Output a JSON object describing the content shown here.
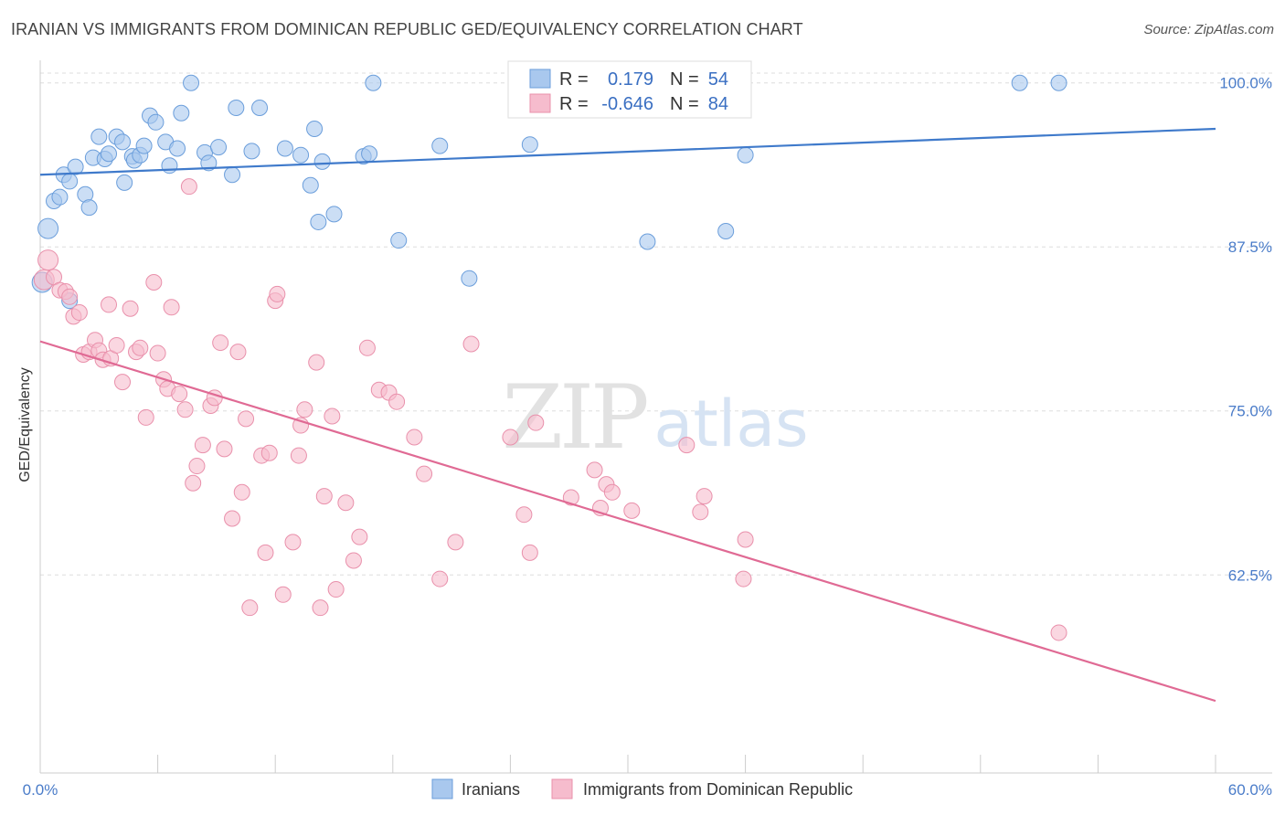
{
  "title": "IRANIAN VS IMMIGRANTS FROM DOMINICAN REPUBLIC GED/EQUIVALENCY CORRELATION CHART",
  "source": "Source: ZipAtlas.com",
  "watermark": {
    "zip": "ZIP",
    "atlas": "atlas"
  },
  "colors": {
    "blue_fill": "#a9c8ee",
    "blue_stroke": "#6b9edb",
    "blue_line": "#3f7acb",
    "pink_fill": "#f6bccd",
    "pink_stroke": "#e990ab",
    "pink_line": "#e06a94",
    "axis_text": "#4a7cc9",
    "grid": "#dddddd"
  },
  "legend": {
    "r_label": "R =",
    "n_label": "N =",
    "rows": [
      {
        "series": "Iranians",
        "r": "0.179",
        "n": "54"
      },
      {
        "series": "Immigrants from Dominican Republic",
        "r": "-0.646",
        "n": "84"
      }
    ]
  },
  "chart_data": {
    "type": "scatter",
    "title": "IRANIAN VS IMMIGRANTS FROM DOMINICAN REPUBLIC GED/EQUIVALENCY CORRELATION CHART",
    "xlabel": "",
    "ylabel": "GED/Equivalency",
    "xlim": [
      0,
      60
    ],
    "ylim": [
      48.8,
      102
    ],
    "x_tick_labels": [
      "0.0%",
      "60.0%"
    ],
    "y_ticks": [
      62.5,
      75.0,
      87.5,
      100.0
    ],
    "y_tick_labels": [
      "62.5%",
      "75.0%",
      "87.5%",
      "100.0%"
    ],
    "grid": "horizontal dashed",
    "legend_position": "top-center",
    "series": [
      {
        "name": "Iranians",
        "color": "#a9c8ee",
        "trend": {
          "x": [
            0,
            60
          ],
          "y": [
            93.0,
            96.5
          ]
        },
        "points": [
          [
            0.1,
            84.8
          ],
          [
            0.4,
            88.9
          ],
          [
            0.7,
            91.0
          ],
          [
            1.0,
            91.3
          ],
          [
            1.2,
            93.0
          ],
          [
            1.5,
            92.5
          ],
          [
            1.8,
            93.6
          ],
          [
            2.3,
            91.5
          ],
          [
            2.5,
            90.5
          ],
          [
            2.7,
            94.3
          ],
          [
            3.0,
            95.9
          ],
          [
            3.3,
            94.2
          ],
          [
            3.5,
            94.6
          ],
          [
            3.9,
            95.9
          ],
          [
            4.2,
            95.5
          ],
          [
            4.3,
            92.4
          ],
          [
            4.7,
            94.4
          ],
          [
            4.8,
            94.1
          ],
          [
            5.1,
            94.5
          ],
          [
            5.3,
            95.2
          ],
          [
            5.6,
            97.5
          ],
          [
            5.9,
            97.0
          ],
          [
            6.4,
            95.5
          ],
          [
            6.6,
            93.7
          ],
          [
            7.0,
            95.0
          ],
          [
            7.2,
            97.7
          ],
          [
            7.7,
            100.0
          ],
          [
            8.4,
            94.7
          ],
          [
            8.6,
            93.9
          ],
          [
            9.1,
            95.1
          ],
          [
            9.8,
            93.0
          ],
          [
            10.0,
            98.1
          ],
          [
            10.8,
            94.8
          ],
          [
            11.2,
            98.1
          ],
          [
            12.5,
            95.0
          ],
          [
            13.3,
            94.5
          ],
          [
            13.8,
            92.2
          ],
          [
            14.0,
            96.5
          ],
          [
            14.2,
            89.4
          ],
          [
            14.4,
            94.0
          ],
          [
            15.0,
            90.0
          ],
          [
            16.5,
            94.4
          ],
          [
            16.8,
            94.6
          ],
          [
            17.0,
            100.0
          ],
          [
            18.3,
            88.0
          ],
          [
            20.4,
            95.2
          ],
          [
            21.9,
            85.1
          ],
          [
            25.0,
            95.3
          ],
          [
            31.0,
            87.9
          ],
          [
            35.0,
            88.7
          ],
          [
            36.0,
            94.5
          ],
          [
            50.0,
            100.0
          ],
          [
            52.0,
            100.0
          ],
          [
            1.5,
            83.4
          ]
        ]
      },
      {
        "name": "Immigrants from Dominican Republic",
        "color": "#f6bccd",
        "trend": {
          "x": [
            0,
            60
          ],
          "y": [
            80.3,
            52.9
          ]
        },
        "points": [
          [
            0.2,
            85.0
          ],
          [
            0.4,
            86.5
          ],
          [
            0.7,
            85.2
          ],
          [
            1.0,
            84.2
          ],
          [
            1.3,
            84.1
          ],
          [
            1.5,
            83.7
          ],
          [
            1.7,
            82.2
          ],
          [
            2.0,
            82.5
          ],
          [
            2.2,
            79.3
          ],
          [
            2.5,
            79.5
          ],
          [
            2.8,
            80.4
          ],
          [
            3.0,
            79.6
          ],
          [
            3.2,
            78.9
          ],
          [
            3.5,
            83.1
          ],
          [
            3.6,
            79.0
          ],
          [
            3.9,
            80.0
          ],
          [
            4.2,
            77.2
          ],
          [
            4.6,
            82.8
          ],
          [
            4.9,
            79.5
          ],
          [
            5.1,
            79.8
          ],
          [
            5.4,
            74.5
          ],
          [
            5.8,
            84.8
          ],
          [
            6.0,
            79.4
          ],
          [
            6.3,
            77.4
          ],
          [
            6.5,
            76.7
          ],
          [
            6.7,
            82.9
          ],
          [
            7.1,
            76.3
          ],
          [
            7.4,
            75.1
          ],
          [
            7.6,
            92.1
          ],
          [
            7.8,
            69.5
          ],
          [
            8.0,
            70.8
          ],
          [
            8.3,
            72.4
          ],
          [
            8.7,
            75.4
          ],
          [
            8.9,
            76.0
          ],
          [
            9.2,
            80.2
          ],
          [
            9.4,
            72.1
          ],
          [
            9.8,
            66.8
          ],
          [
            10.1,
            79.5
          ],
          [
            10.3,
            68.8
          ],
          [
            10.5,
            74.4
          ],
          [
            10.7,
            60.0
          ],
          [
            11.3,
            71.6
          ],
          [
            11.5,
            64.2
          ],
          [
            11.7,
            71.8
          ],
          [
            12.0,
            83.4
          ],
          [
            12.1,
            83.9
          ],
          [
            12.4,
            61.0
          ],
          [
            12.9,
            65.0
          ],
          [
            13.2,
            71.6
          ],
          [
            13.3,
            73.9
          ],
          [
            13.5,
            75.1
          ],
          [
            14.1,
            78.7
          ],
          [
            14.3,
            60.0
          ],
          [
            14.5,
            68.5
          ],
          [
            14.9,
            74.6
          ],
          [
            15.1,
            61.4
          ],
          [
            15.6,
            68.0
          ],
          [
            16.0,
            63.6
          ],
          [
            16.3,
            65.4
          ],
          [
            16.7,
            79.8
          ],
          [
            17.3,
            76.6
          ],
          [
            17.8,
            76.4
          ],
          [
            18.2,
            75.7
          ],
          [
            19.1,
            73.0
          ],
          [
            19.6,
            70.2
          ],
          [
            20.4,
            62.2
          ],
          [
            21.2,
            65.0
          ],
          [
            22.0,
            80.1
          ],
          [
            24.0,
            73.0
          ],
          [
            24.7,
            67.1
          ],
          [
            25.0,
            64.2
          ],
          [
            25.3,
            74.1
          ],
          [
            27.1,
            68.4
          ],
          [
            28.3,
            70.5
          ],
          [
            28.6,
            67.6
          ],
          [
            28.9,
            69.4
          ],
          [
            29.2,
            68.8
          ],
          [
            30.2,
            67.4
          ],
          [
            33.0,
            72.4
          ],
          [
            33.7,
            67.3
          ],
          [
            33.9,
            68.5
          ],
          [
            35.9,
            62.2
          ],
          [
            36.0,
            65.2
          ],
          [
            52.0,
            58.1
          ]
        ]
      }
    ]
  }
}
